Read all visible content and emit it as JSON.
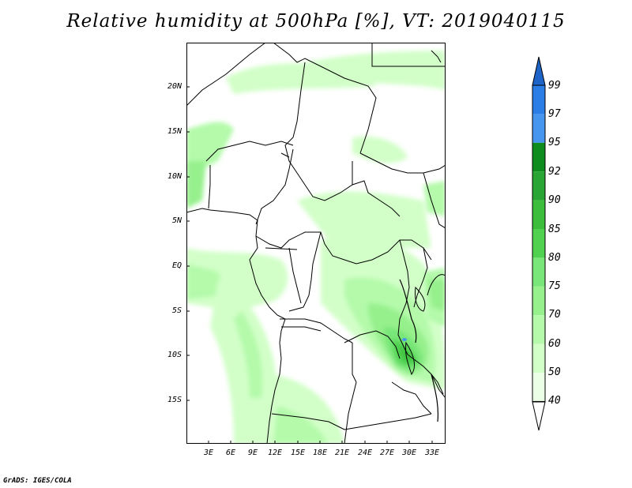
{
  "title": "Relative humidity at 500hPa [%], VT: 2019040115",
  "credit": "GrADS: IGES/COLA",
  "map": {
    "region": "Central Africa",
    "latitude_labels": [
      "20N",
      "15N",
      "10N",
      "5N",
      "EQ",
      "5S",
      "10S",
      "15S"
    ],
    "longitude_labels": [
      "3E",
      "6E",
      "9E",
      "12E",
      "15E",
      "18E",
      "21E",
      "24E",
      "27E",
      "30E",
      "33E"
    ]
  },
  "colorbar": {
    "levels": [
      "99",
      "97",
      "95",
      "92",
      "90",
      "85",
      "80",
      "75",
      "70",
      "60",
      "50",
      "40"
    ],
    "colors": [
      "#1e64c8",
      "#2b7ee6",
      "#4696f0",
      "#0f8c1e",
      "#28a532",
      "#3cbe3c",
      "#50d250",
      "#78e678",
      "#96f08c",
      "#b4faaa",
      "#d2ffc8",
      "#ebffe6"
    ]
  }
}
